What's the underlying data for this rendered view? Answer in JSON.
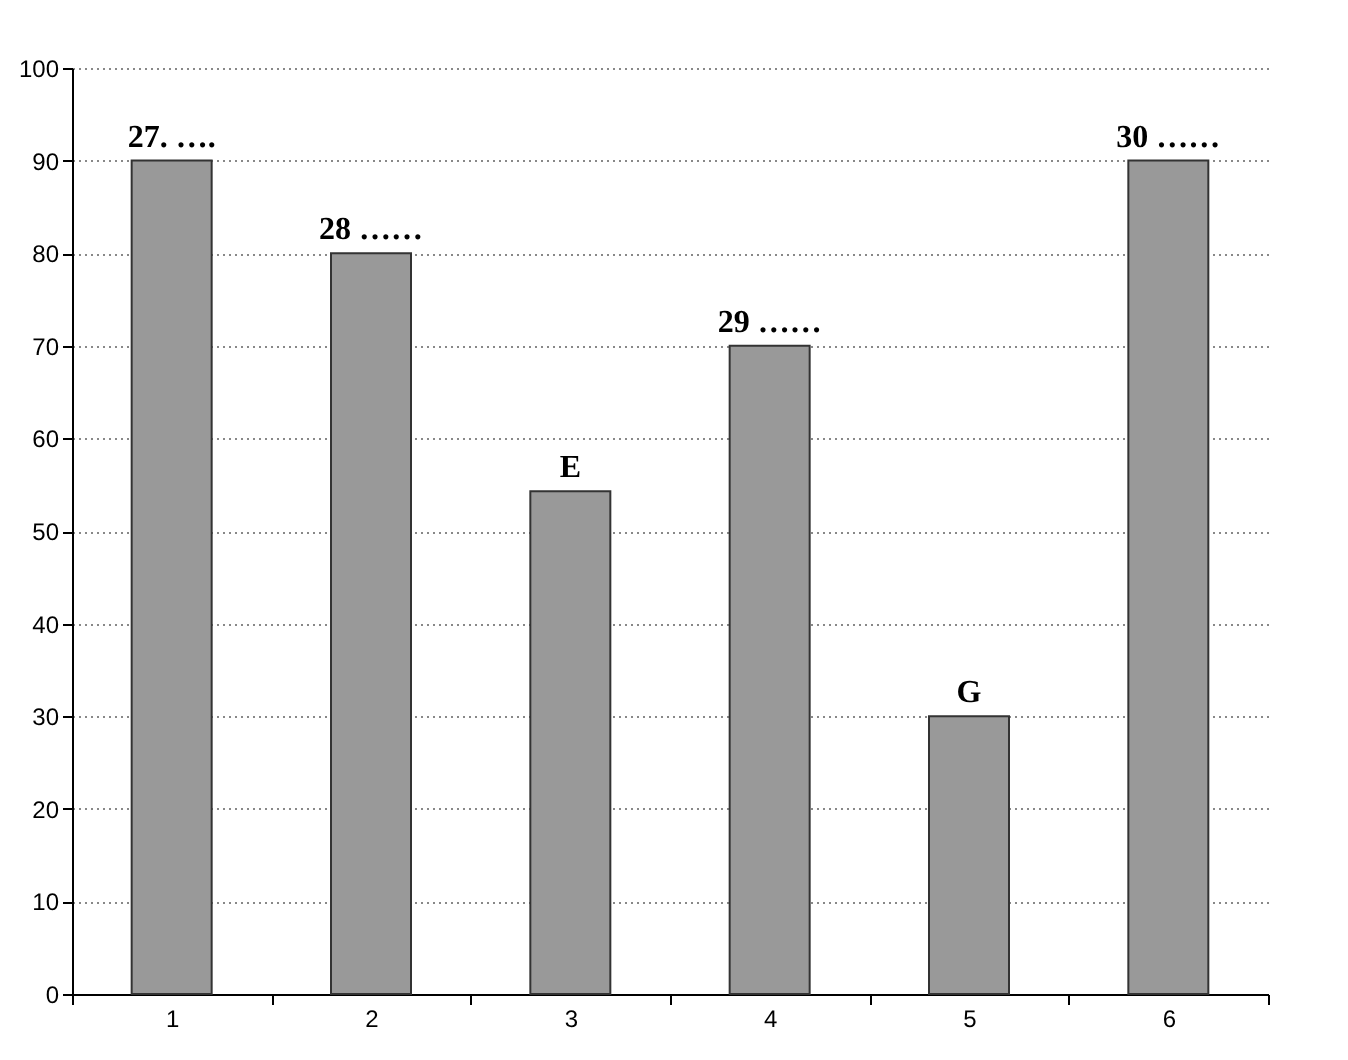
{
  "chart_data": {
    "type": "bar",
    "categories": [
      "1",
      "2",
      "3",
      "4",
      "5",
      "6"
    ],
    "values": [
      90,
      80,
      54.3,
      70,
      30,
      90
    ],
    "color": "#999999",
    "ylim": [
      0,
      100
    ],
    "yticks": [
      0,
      10,
      20,
      30,
      40,
      50,
      60,
      70,
      80,
      90,
      100
    ],
    "grid": "y",
    "annotations": [
      {
        "text": "27. ….",
        "x": "1",
        "y": 90
      },
      {
        "text": "28 ……",
        "x": "2",
        "y": 80
      },
      {
        "text": "E",
        "x": "3",
        "y": 54.3
      },
      {
        "text": "29 ……",
        "x": "4",
        "y": 70
      },
      {
        "text": "G",
        "x": "5",
        "y": 30
      },
      {
        "text": "30 ……",
        "x": "6",
        "y": 90
      }
    ]
  }
}
